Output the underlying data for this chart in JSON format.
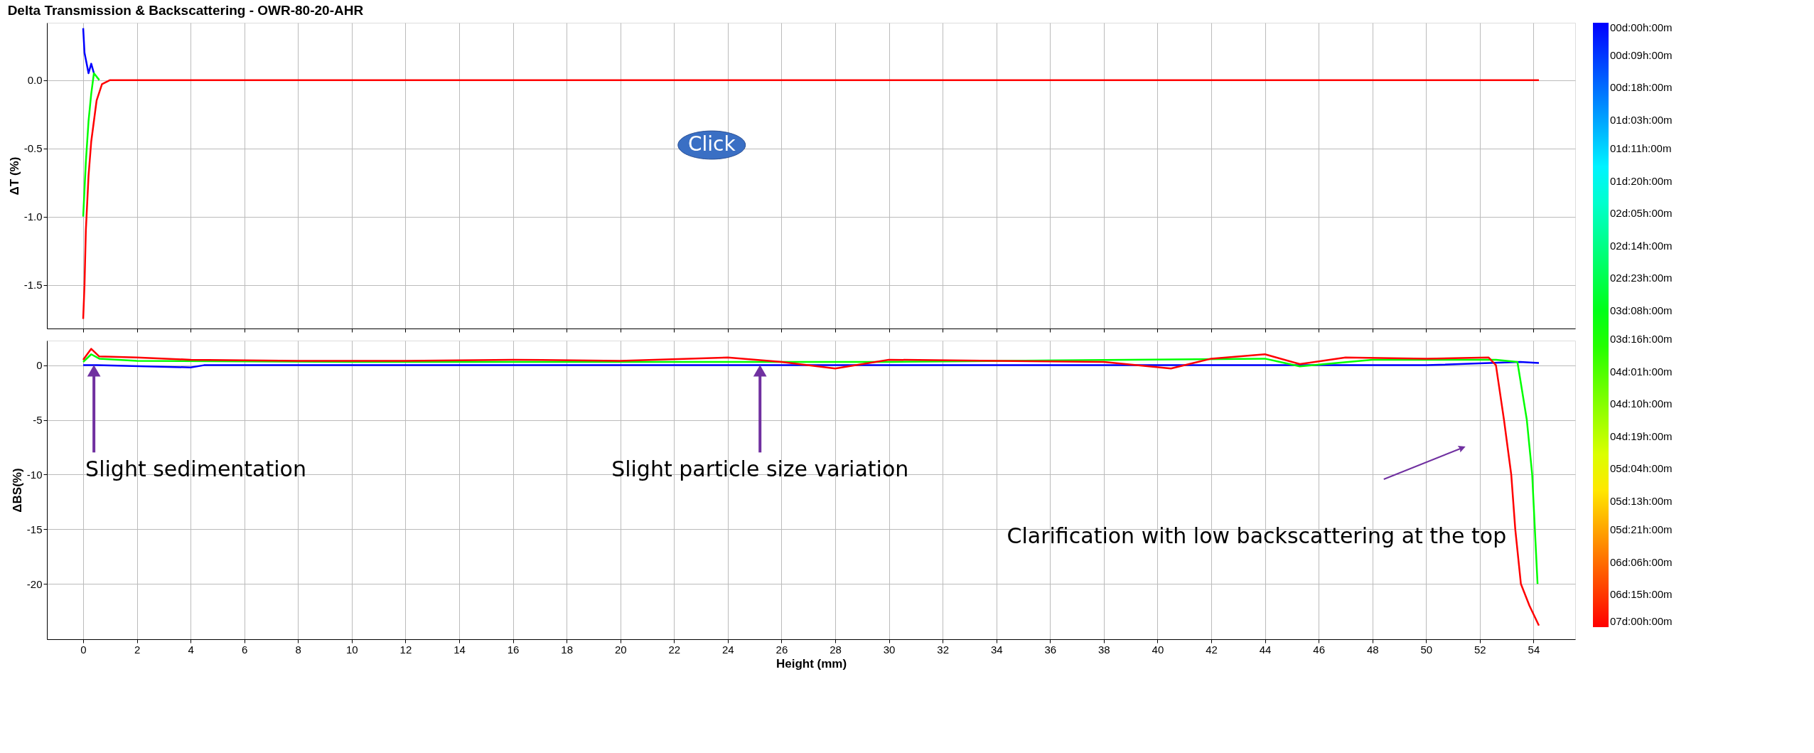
{
  "chart_data": [
    {
      "type": "line",
      "title": "Delta Transmission & Backscattering - OWR-80-20-AHR",
      "ylabel": "ΔT (%)",
      "xlim": [
        -1.35,
        55.55
      ],
      "xticks": [
        0,
        2,
        4,
        6,
        8,
        10,
        12,
        14,
        16,
        18,
        20,
        22,
        24,
        26,
        28,
        30,
        32,
        34,
        36,
        38,
        40,
        42,
        44,
        46,
        48,
        50,
        52,
        54
      ],
      "ylim": [
        -1.82,
        0.42
      ],
      "yticks": [
        {
          "value": -1.5,
          "label": "-1.5"
        },
        {
          "value": -1,
          "label": "-1.0"
        },
        {
          "value": -0.5,
          "label": "-0.5"
        },
        {
          "value": 0,
          "label": "0.0"
        }
      ],
      "tick_labels": "y",
      "grid": true,
      "clim": [
        0,
        168
      ],
      "cticks": [
        {
          "value": 0,
          "label": "00d:00h:00m"
        },
        {
          "value": 9,
          "label": "00d:09h:00m"
        },
        {
          "value": 18,
          "label": "00d:18h:00m"
        },
        {
          "value": 27,
          "label": "01d:03h:00m"
        },
        {
          "value": 35,
          "label": "01d:11h:00m"
        },
        {
          "value": 44,
          "label": "01d:20h:00m"
        },
        {
          "value": 53,
          "label": "02d:05h:00m"
        },
        {
          "value": 62,
          "label": "02d:14h:00m"
        },
        {
          "value": 71,
          "label": "02d:23h:00m"
        },
        {
          "value": 80,
          "label": "03d:08h:00m"
        },
        {
          "value": 88,
          "label": "03d:16h:00m"
        },
        {
          "value": 97,
          "label": "04d:01h:00m"
        },
        {
          "value": 106,
          "label": "04d:10h:00m"
        },
        {
          "value": 115,
          "label": "04d:19h:00m"
        },
        {
          "value": 124,
          "label": "05d:04h:00m"
        },
        {
          "value": 133,
          "label": "05d:13h:00m"
        },
        {
          "value": 141,
          "label": "05d:21h:00m"
        },
        {
          "value": 150,
          "label": "06d:06h:00m"
        },
        {
          "value": 159,
          "label": "06d:15h:00m"
        },
        {
          "value": 168,
          "label": "07d:00h:00m"
        }
      ],
      "annotations": [
        "Click"
      ],
      "series": [
        {
          "color": "#0000ff",
          "x": [
            0,
            0.05,
            0.1,
            0.2,
            0.3,
            0.4
          ],
          "values": [
            0.38,
            0.2,
            0.15,
            0.05,
            0.12,
            0.05
          ]
        },
        {
          "color": "#00ff00",
          "x": [
            0,
            0.1,
            0.2,
            0.3,
            0.4,
            0.6
          ],
          "values": [
            -1.0,
            -0.6,
            -0.3,
            -0.1,
            0.05,
            0
          ]
        },
        {
          "color": "#ff0000",
          "x": [
            0,
            0.05,
            0.1,
            0.2,
            0.3,
            0.4,
            0.5,
            0.7,
            1,
            10,
            20,
            30,
            40,
            50,
            54.2
          ],
          "values": [
            -1.75,
            -1.5,
            -1.1,
            -0.7,
            -0.45,
            -0.3,
            -0.15,
            -0.03,
            0,
            0,
            0,
            0,
            0,
            0,
            0
          ]
        }
      ]
    },
    {
      "type": "line",
      "xlabel": "Height (mm)",
      "ylabel": "ΔBS(%)",
      "xlim": [
        -1.35,
        55.55
      ],
      "xticks": [
        0,
        2,
        4,
        6,
        8,
        10,
        12,
        14,
        16,
        18,
        20,
        22,
        24,
        26,
        28,
        30,
        32,
        34,
        36,
        38,
        40,
        42,
        44,
        46,
        48,
        50,
        52,
        54
      ],
      "ylim": [
        -25.05,
        2.25
      ],
      "yticks": [
        -20,
        -15,
        -10,
        -5,
        0
      ],
      "grid": true,
      "annotations": [
        {
          "text": "Slight sedimentation",
          "x": 0.4,
          "y": -0.5
        },
        {
          "text": "Slight particle size variation",
          "x": 25.2,
          "y": -0.5
        },
        "Clarification with low backscattering at the top"
      ],
      "series": [
        {
          "color": "#0000ff",
          "x": [
            0,
            0.5,
            4,
            4.5,
            10,
            20,
            30,
            40,
            50,
            53.5,
            54.2
          ],
          "values": [
            0,
            0,
            -0.2,
            0,
            0,
            0,
            0,
            0,
            0,
            0.3,
            0.2
          ]
        },
        {
          "color": "#00ff00",
          "x": [
            0,
            0.3,
            0.6,
            2,
            10,
            20,
            30,
            44,
            45.3,
            48,
            52.6,
            53.4,
            53.75,
            53.95,
            54.15
          ],
          "values": [
            0.3,
            1.0,
            0.6,
            0.4,
            0.3,
            0.3,
            0.3,
            0.6,
            -0.1,
            0.5,
            0.5,
            0.3,
            -5,
            -10,
            -20
          ]
        },
        {
          "color": "#ff0000",
          "x": [
            0,
            0.3,
            0.6,
            2,
            4,
            8,
            12,
            16,
            20,
            24,
            26,
            28,
            30,
            34,
            38,
            40.5,
            42,
            44,
            45.3,
            47,
            50,
            52.33,
            52.6,
            52.9,
            53.17,
            53.32,
            53.53,
            53.85,
            54.2
          ],
          "values": [
            0.5,
            1.5,
            0.8,
            0.7,
            0.5,
            0.4,
            0.4,
            0.5,
            0.4,
            0.7,
            0.3,
            -0.3,
            0.5,
            0.4,
            0.3,
            -0.3,
            0.6,
            1.0,
            0.1,
            0.7,
            0.6,
            0.7,
            0,
            -5,
            -10,
            -15,
            -20,
            -22,
            -23.8
          ]
        }
      ]
    }
  ]
}
